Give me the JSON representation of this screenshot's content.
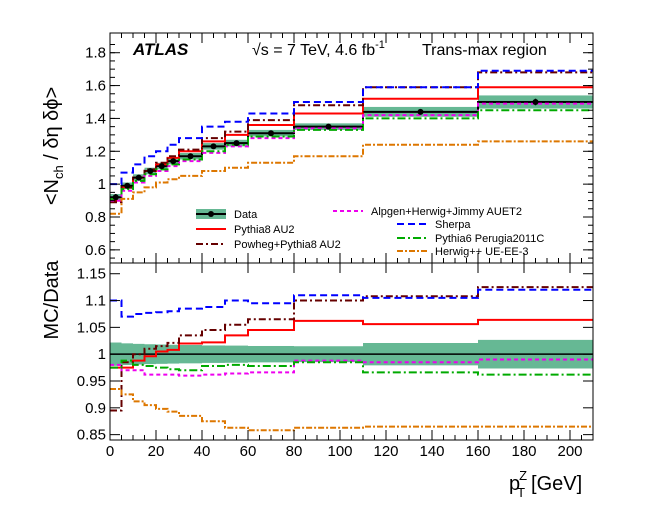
{
  "chart_data": {
    "type": "line",
    "experiment": "ATLAS",
    "energy_label": "√s = 7 TeV, 4.6 fb",
    "lumi_exponent": "-1",
    "region": "Trans-max region",
    "xlabel_main": "p",
    "xlabel_sup": "Z",
    "xlabel_sub": "T",
    "xlabel_unit": "[GeV]",
    "ylabel_top": "<N",
    "ylabel_top_sub": "ch",
    "ylabel_top_rest": " / δη δϕ>",
    "ylabel_bottom": "MC/Data",
    "xlim": [
      0,
      210
    ],
    "ylim_top": [
      0.52,
      1.92
    ],
    "ylim_bottom": [
      0.84,
      1.17
    ],
    "x_ticks": [
      0,
      20,
      40,
      60,
      80,
      100,
      120,
      140,
      160,
      180,
      200
    ],
    "x_tick_labels": [
      "0",
      "20",
      "40",
      "60",
      "80",
      "100",
      "120",
      "140",
      "160",
      "180",
      "200"
    ],
    "y_ticks_top": [
      0.6,
      0.8,
      1.0,
      1.2,
      1.4,
      1.6,
      1.8
    ],
    "y_tick_labels_top": [
      "0.6",
      "0.8",
      "1",
      "1.2",
      "1.4",
      "1.6",
      "1.8"
    ],
    "y_ticks_bottom": [
      0.85,
      0.9,
      0.95,
      1.0,
      1.05,
      1.1,
      1.15
    ],
    "y_tick_labels_bottom": [
      "0.85",
      "0.9",
      "0.95",
      "1",
      "1.05",
      "1.1",
      "1.15"
    ],
    "bin_edges": [
      0,
      5,
      10,
      15,
      20,
      25,
      30,
      40,
      50,
      60,
      80,
      110,
      160,
      210
    ],
    "data": {
      "name": "Data",
      "values": [
        0.92,
        0.99,
        1.04,
        1.08,
        1.11,
        1.14,
        1.17,
        1.23,
        1.25,
        1.31,
        1.35,
        1.44,
        1.5
      ],
      "stat_err": [
        0.02,
        0.01,
        0.01,
        0.01,
        0.01,
        0.01,
        0.01,
        0.01,
        0.01,
        0.01,
        0.01,
        0.01,
        0.02
      ],
      "band_err": [
        0.02,
        0.02,
        0.02,
        0.02,
        0.02,
        0.02,
        0.02,
        0.02,
        0.02,
        0.02,
        0.02,
        0.03,
        0.04
      ]
    },
    "series": [
      {
        "name": "Pythia8 AU2",
        "color": "#ff0000",
        "dash": "none",
        "values": [
          0.9,
          0.98,
          1.04,
          1.08,
          1.12,
          1.16,
          1.2,
          1.26,
          1.3,
          1.36,
          1.43,
          1.52,
          1.59
        ],
        "ratio": [
          0.975,
          0.975,
          0.988,
          0.996,
          1.005,
          1.008,
          1.02,
          1.022,
          1.035,
          1.045,
          1.062,
          1.056,
          1.064
        ]
      },
      {
        "name": "Powheg+Pythia8 AU2",
        "color": "#660000",
        "dash": "7,3,2,3",
        "values": [
          0.89,
          0.98,
          1.04,
          1.09,
          1.13,
          1.17,
          1.21,
          1.28,
          1.32,
          1.39,
          1.48,
          1.59,
          1.68
        ],
        "ratio": [
          0.895,
          0.985,
          1.0,
          1.01,
          1.015,
          1.021,
          1.035,
          1.045,
          1.055,
          1.065,
          1.1,
          1.108,
          1.125
        ]
      },
      {
        "name": "Alpgen+Herwig+Jimmy AUET2",
        "color": "#ee00ee",
        "dash": "4,3",
        "values": [
          0.9,
          0.96,
          1.01,
          1.05,
          1.08,
          1.11,
          1.14,
          1.19,
          1.23,
          1.28,
          1.34,
          1.42,
          1.49
        ],
        "ratio": [
          0.98,
          0.97,
          0.97,
          0.962,
          0.962,
          0.962,
          0.96,
          0.962,
          0.964,
          0.966,
          0.988,
          0.985,
          0.99
        ]
      },
      {
        "name": "Sherpa",
        "color": "#0000ff",
        "dash": "7,4",
        "values": [
          1.0,
          1.07,
          1.12,
          1.17,
          1.2,
          1.24,
          1.28,
          1.35,
          1.38,
          1.43,
          1.5,
          1.59,
          1.69
        ],
        "ratio": [
          1.1,
          1.07,
          1.075,
          1.077,
          1.078,
          1.08,
          1.085,
          1.088,
          1.1,
          1.095,
          1.11,
          1.105,
          1.12
        ]
      },
      {
        "name": "Pythia6 Perugia2011C",
        "color": "#00aa00",
        "dash": "8,3,2,3",
        "values": [
          0.91,
          0.97,
          1.02,
          1.06,
          1.09,
          1.12,
          1.15,
          1.2,
          1.24,
          1.29,
          1.33,
          1.4,
          1.45
        ],
        "ratio": [
          0.975,
          0.988,
          0.98,
          0.978,
          0.975,
          0.972,
          0.97,
          0.978,
          0.98,
          0.978,
          0.985,
          0.966,
          0.962
        ]
      },
      {
        "name": "Herwig++ UE-EE-3",
        "color": "#dd7700",
        "dash": "6,2,2,2",
        "values": [
          0.82,
          0.91,
          0.95,
          0.98,
          1.01,
          1.03,
          1.05,
          1.08,
          1.1,
          1.13,
          1.17,
          1.24,
          1.26
        ],
        "ratio": [
          0.935,
          0.925,
          0.912,
          0.905,
          0.898,
          0.893,
          0.885,
          0.875,
          0.863,
          0.858,
          0.863,
          0.865,
          0.865
        ]
      }
    ],
    "band_color": "#66b894"
  }
}
